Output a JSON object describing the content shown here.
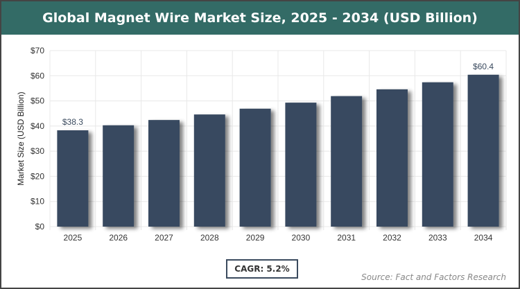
{
  "chart_data": {
    "type": "bar",
    "title": "Global Magnet Wire Market Size, 2025 - 2034 (USD Billion)",
    "categories": [
      "2025",
      "2026",
      "2027",
      "2028",
      "2029",
      "2030",
      "2031",
      "2032",
      "2033",
      "2034"
    ],
    "values": [
      38.3,
      40.3,
      42.4,
      44.6,
      46.9,
      49.3,
      51.9,
      54.6,
      57.4,
      60.4
    ],
    "data_labels": {
      "0": "$38.3",
      "9": "$60.4"
    },
    "xlabel": "",
    "ylabel": "Market Size (USD Billion)",
    "ylim": [
      0,
      70
    ],
    "yticks": [
      "$0",
      "$10",
      "$20",
      "$30",
      "$40",
      "$50",
      "$60",
      "$70"
    ],
    "grid": true,
    "bar_color": "#374a60",
    "title_bg": "#336b66"
  },
  "cagr": "CAGR: 5.2%",
  "source": "Source: Fact and Factors Research"
}
